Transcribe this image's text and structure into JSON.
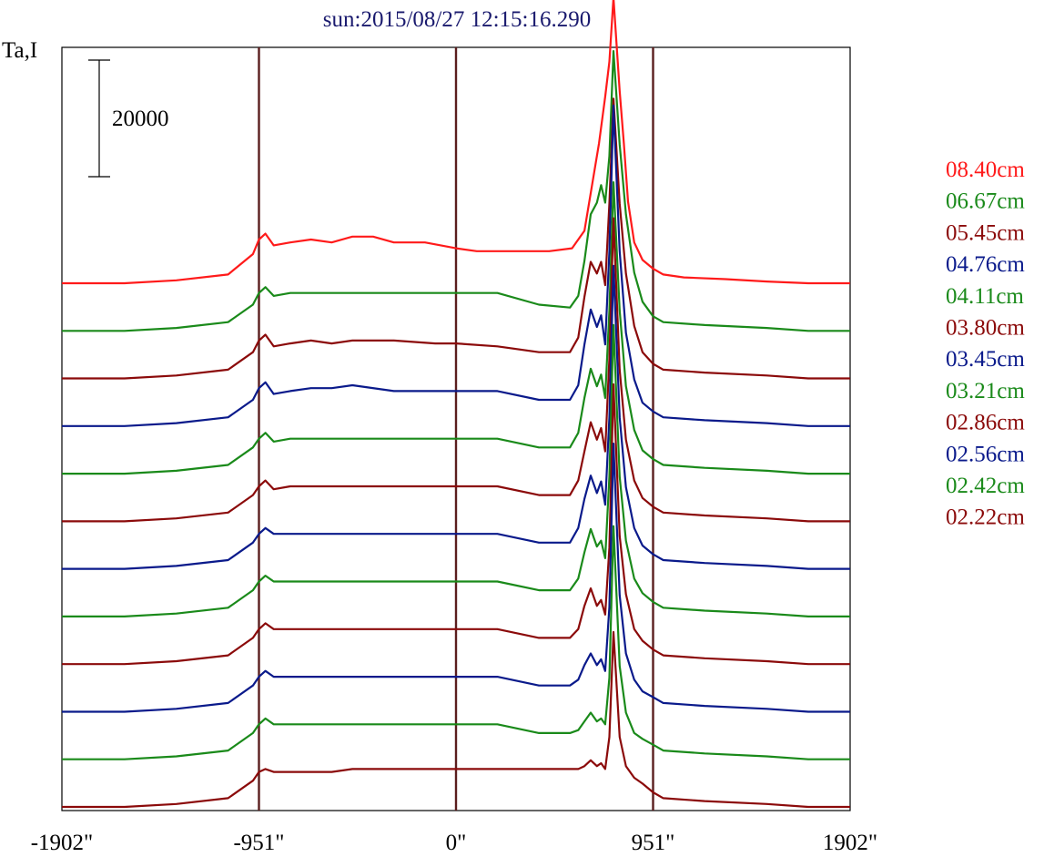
{
  "chart_data": {
    "type": "line",
    "title": "sun:2015/08/27 12:15:16.290",
    "ylabel": "Ta,I",
    "scale_bar_label": "20000",
    "scale_bar_value": 20000,
    "x_ticks": [
      {
        "label": "-1902\"",
        "value": -1902
      },
      {
        "label": "-951\"",
        "value": -951
      },
      {
        "label": "0\"",
        "value": 0
      },
      {
        "label": "951\"",
        "value": 951
      },
      {
        "label": "1902\"",
        "value": 1902
      }
    ],
    "xlim": [
      -1902,
      1902
    ],
    "reference_lines": [
      -951,
      0,
      951
    ],
    "grid": false,
    "legend_position": "right",
    "colors": {
      "title": "#1a1a6e",
      "axis_line": "#5a1e1e",
      "red": "#ff1a1a",
      "green": "#1a8a1a",
      "darkred": "#8b0a0a",
      "blue": "#0a1a8b"
    },
    "series": [
      {
        "name": "08.40cm",
        "color": "#ff1a1a",
        "x": [
          -1902,
          -1600,
          -1350,
          -1100,
          -980,
          -951,
          -920,
          -880,
          -800,
          -700,
          -600,
          -500,
          -400,
          -300,
          -150,
          0,
          100,
          200,
          300,
          450,
          560,
          620,
          690,
          720,
          740,
          760,
          790,
          810,
          830,
          860,
          900,
          951,
          1000,
          1100,
          1300,
          1500,
          1700,
          1902
        ],
        "y": [
          0,
          0,
          500,
          1500,
          5000,
          7500,
          8500,
          6500,
          7000,
          7500,
          7000,
          8000,
          8000,
          7000,
          7000,
          6000,
          5500,
          5500,
          5500,
          5500,
          6000,
          9000,
          24000,
          32000,
          38000,
          49000,
          33000,
          24000,
          14000,
          7000,
          4000,
          2500,
          1500,
          1000,
          700,
          300,
          0,
          0
        ]
      },
      {
        "name": "06.67cm",
        "color": "#1a8a1a",
        "x": [
          -1902,
          -1600,
          -1350,
          -1100,
          -980,
          -951,
          -920,
          -880,
          -800,
          -700,
          -600,
          -500,
          -300,
          -100,
          0,
          200,
          400,
          550,
          590,
          620,
          650,
          680,
          700,
          720,
          740,
          760,
          790,
          820,
          860,
          900,
          951,
          1000,
          1200,
          1500,
          1700,
          1902
        ],
        "y": [
          0,
          0,
          500,
          1500,
          4500,
          6500,
          7500,
          6000,
          6500,
          6500,
          6500,
          6500,
          6500,
          6500,
          6500,
          6500,
          4500,
          4000,
          6000,
          12000,
          20000,
          22000,
          25000,
          22000,
          30000,
          48000,
          32000,
          20000,
          10000,
          5000,
          2500,
          1500,
          1000,
          500,
          0,
          0
        ]
      },
      {
        "name": "05.45cm",
        "color": "#8b0a0a",
        "x": [
          -1902,
          -1600,
          -1350,
          -1100,
          -980,
          -951,
          -920,
          -880,
          -800,
          -700,
          -600,
          -500,
          -300,
          -100,
          0,
          200,
          400,
          550,
          590,
          620,
          650,
          680,
          700,
          720,
          740,
          760,
          790,
          820,
          860,
          900,
          951,
          1000,
          1200,
          1500,
          1700,
          1902
        ],
        "y": [
          0,
          0,
          500,
          1500,
          4500,
          6500,
          7500,
          5500,
          6000,
          6500,
          6000,
          6500,
          6500,
          6000,
          6000,
          5500,
          4500,
          4500,
          7000,
          14000,
          20000,
          18000,
          20000,
          16000,
          30000,
          48000,
          30000,
          18000,
          9000,
          4500,
          2500,
          1500,
          1000,
          500,
          0,
          0
        ]
      },
      {
        "name": "04.76cm",
        "color": "#0a1a8b",
        "x": [
          -1902,
          -1600,
          -1350,
          -1100,
          -980,
          -951,
          -920,
          -880,
          -800,
          -700,
          -600,
          -500,
          -300,
          -100,
          0,
          200,
          400,
          550,
          590,
          620,
          650,
          680,
          700,
          720,
          740,
          760,
          790,
          820,
          860,
          900,
          951,
          1000,
          1200,
          1500,
          1700,
          1902
        ],
        "y": [
          0,
          0,
          500,
          1500,
          4500,
          6500,
          7500,
          5500,
          6000,
          6500,
          6500,
          7000,
          6000,
          6000,
          6000,
          6000,
          4500,
          4500,
          7000,
          14000,
          20000,
          17000,
          19000,
          14000,
          30000,
          55000,
          30000,
          16000,
          8000,
          4000,
          2500,
          1500,
          1000,
          500,
          0,
          0
        ]
      },
      {
        "name": "04.11cm",
        "color": "#1a8a1a",
        "x": [
          -1902,
          -1600,
          -1350,
          -1100,
          -980,
          -951,
          -920,
          -880,
          -800,
          -700,
          -600,
          -500,
          -300,
          -100,
          0,
          200,
          400,
          550,
          590,
          620,
          650,
          680,
          700,
          720,
          740,
          760,
          790,
          820,
          860,
          900,
          951,
          1000,
          1200,
          1500,
          1700,
          1902
        ],
        "y": [
          0,
          0,
          500,
          1500,
          4500,
          6000,
          7000,
          5500,
          6000,
          6000,
          6000,
          6000,
          6000,
          6000,
          6000,
          6000,
          4500,
          4500,
          7000,
          13000,
          18000,
          15000,
          17000,
          13000,
          28000,
          50000,
          28000,
          15000,
          7500,
          4000,
          2500,
          1500,
          1000,
          500,
          0,
          0
        ]
      },
      {
        "name": "03.80cm",
        "color": "#8b0a0a",
        "x": [
          -1902,
          -1600,
          -1350,
          -1100,
          -980,
          -951,
          -920,
          -880,
          -800,
          -700,
          -600,
          -500,
          -300,
          -100,
          0,
          200,
          400,
          550,
          590,
          620,
          650,
          680,
          700,
          720,
          740,
          760,
          790,
          820,
          860,
          900,
          951,
          1000,
          1200,
          1500,
          1700,
          1902
        ],
        "y": [
          0,
          0,
          500,
          1500,
          4500,
          6000,
          7000,
          5500,
          6000,
          6000,
          6000,
          6000,
          6000,
          6000,
          6000,
          6000,
          4500,
          4500,
          7000,
          12000,
          17000,
          14000,
          16000,
          12000,
          28000,
          52000,
          26000,
          14000,
          7000,
          4000,
          2500,
          1500,
          1000,
          500,
          0,
          0
        ]
      },
      {
        "name": "03.45cm",
        "color": "#0a1a8b",
        "x": [
          -1902,
          -1600,
          -1350,
          -1100,
          -980,
          -951,
          -920,
          -880,
          -800,
          -700,
          -600,
          -500,
          -300,
          -100,
          0,
          200,
          400,
          550,
          590,
          620,
          650,
          680,
          700,
          720,
          740,
          760,
          790,
          820,
          860,
          900,
          951,
          1000,
          1200,
          1500,
          1700,
          1902
        ],
        "y": [
          0,
          0,
          500,
          1500,
          4500,
          6000,
          7000,
          6000,
          6000,
          6000,
          6000,
          6000,
          6000,
          6000,
          6000,
          6000,
          4500,
          4500,
          7000,
          12000,
          16000,
          13000,
          15000,
          11000,
          26000,
          52000,
          26000,
          14000,
          7000,
          4000,
          2500,
          1500,
          1000,
          500,
          0,
          0
        ]
      },
      {
        "name": "03.21cm",
        "color": "#1a8a1a",
        "x": [
          -1902,
          -1600,
          -1350,
          -1100,
          -980,
          -951,
          -920,
          -880,
          -800,
          -700,
          -600,
          -500,
          -300,
          -100,
          0,
          200,
          400,
          550,
          590,
          620,
          650,
          680,
          700,
          720,
          740,
          760,
          790,
          820,
          860,
          900,
          951,
          1000,
          1200,
          1500,
          1700,
          1902
        ],
        "y": [
          0,
          0,
          500,
          1500,
          4500,
          6000,
          7000,
          6000,
          6000,
          6000,
          6000,
          6000,
          6000,
          6000,
          6000,
          6000,
          4500,
          4500,
          6500,
          11000,
          15000,
          12000,
          13000,
          10000,
          24000,
          50000,
          24000,
          13000,
          6500,
          4000,
          2500,
          1500,
          1000,
          500,
          0,
          0
        ]
      },
      {
        "name": "02.86cm",
        "color": "#8b0a0a",
        "x": [
          -1902,
          -1600,
          -1350,
          -1100,
          -980,
          -951,
          -920,
          -880,
          -800,
          -700,
          -600,
          -500,
          -300,
          -100,
          0,
          200,
          400,
          550,
          590,
          620,
          650,
          680,
          700,
          720,
          740,
          760,
          790,
          820,
          860,
          900,
          951,
          1000,
          1200,
          1500,
          1700,
          1902
        ],
        "y": [
          0,
          0,
          500,
          1500,
          4500,
          6000,
          7000,
          6000,
          6000,
          6000,
          6000,
          6000,
          6000,
          6000,
          6000,
          6000,
          4500,
          4500,
          6000,
          10000,
          13000,
          10000,
          11000,
          8500,
          20000,
          48000,
          22000,
          12000,
          6000,
          4000,
          2500,
          1500,
          1000,
          500,
          0,
          0
        ]
      },
      {
        "name": "02.56cm",
        "color": "#0a1a8b",
        "x": [
          -1902,
          -1600,
          -1350,
          -1100,
          -980,
          -951,
          -920,
          -880,
          -800,
          -700,
          -600,
          -500,
          -300,
          -100,
          0,
          200,
          400,
          550,
          590,
          620,
          650,
          680,
          700,
          720,
          740,
          760,
          790,
          820,
          860,
          900,
          951,
          1000,
          1200,
          1500,
          1700,
          1902
        ],
        "y": [
          0,
          0,
          500,
          1500,
          4500,
          6000,
          7000,
          6000,
          6000,
          6000,
          6000,
          6000,
          6000,
          6000,
          6000,
          6000,
          4500,
          4500,
          5500,
          8000,
          10000,
          8000,
          9000,
          7000,
          18000,
          46000,
          20000,
          10000,
          5500,
          3500,
          2500,
          1500,
          1000,
          500,
          0,
          0
        ]
      },
      {
        "name": "02.42cm",
        "color": "#1a8a1a",
        "x": [
          -1902,
          -1600,
          -1350,
          -1100,
          -980,
          -951,
          -920,
          -880,
          -800,
          -700,
          -600,
          -500,
          -300,
          -100,
          0,
          200,
          400,
          550,
          590,
          620,
          650,
          680,
          700,
          720,
          740,
          760,
          790,
          820,
          860,
          900,
          951,
          1000,
          1200,
          1500,
          1700,
          1902
        ],
        "y": [
          0,
          0,
          500,
          1500,
          4500,
          6000,
          7000,
          6000,
          6000,
          6000,
          6000,
          6000,
          6000,
          6000,
          6000,
          6000,
          4500,
          4500,
          5000,
          6500,
          8000,
          6500,
          7000,
          6000,
          14000,
          40000,
          16000,
          8000,
          4500,
          3500,
          2500,
          1500,
          1000,
          500,
          0,
          0
        ]
      },
      {
        "name": "02.22cm",
        "color": "#8b0a0a",
        "x": [
          -1902,
          -1600,
          -1350,
          -1100,
          -980,
          -951,
          -920,
          -880,
          -800,
          -700,
          -600,
          -500,
          -300,
          -100,
          0,
          200,
          400,
          550,
          590,
          620,
          650,
          680,
          700,
          720,
          740,
          760,
          790,
          820,
          860,
          900,
          951,
          1000,
          1200,
          1500,
          1700,
          1902
        ],
        "y": [
          0,
          0,
          500,
          1500,
          4500,
          6000,
          6500,
          6000,
          6000,
          6000,
          6000,
          6500,
          6500,
          6500,
          6500,
          6500,
          6500,
          6500,
          6500,
          7000,
          8000,
          7000,
          7500,
          6500,
          12000,
          30000,
          12000,
          7000,
          5000,
          4000,
          2500,
          1500,
          1000,
          500,
          0,
          0
        ]
      }
    ]
  }
}
